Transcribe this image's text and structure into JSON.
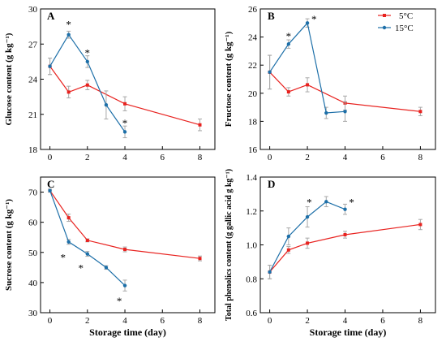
{
  "colors": {
    "s5": "#e8221f",
    "s15": "#1d6fa8",
    "err": "#a8a8a8"
  },
  "legend": {
    "s5": "5°C",
    "s15": "15°C"
  },
  "chart_data": [
    {
      "type": "line",
      "panel_label": "A",
      "ylabel": "Glucose content (g kg⁻¹)",
      "xlabel": "",
      "xlim": [
        -0.5,
        8.8
      ],
      "ylim": [
        18,
        30
      ],
      "xticks": [
        0,
        2,
        4,
        6,
        8
      ],
      "yticks": [
        18,
        21,
        24,
        27,
        30
      ],
      "series": [
        {
          "name": "5°C",
          "color_key": "s5",
          "x": [
            0,
            1,
            2,
            4,
            8
          ],
          "y": [
            25.1,
            22.9,
            23.5,
            21.9,
            20.1
          ],
          "err": [
            0.7,
            0.5,
            0.4,
            0.6,
            0.5
          ]
        },
        {
          "name": "15°C",
          "color_key": "s15",
          "x": [
            0,
            1,
            2,
            3,
            4
          ],
          "y": [
            25.1,
            27.8,
            25.5,
            21.8,
            19.5
          ],
          "err": [
            0.7,
            0.3,
            0.5,
            1.2,
            0.5
          ]
        }
      ],
      "stars": [
        {
          "x": 1,
          "y": 28.7,
          "text": "*"
        },
        {
          "x": 2,
          "y": 26.3,
          "text": "*"
        },
        {
          "x": 4,
          "y": 20.3,
          "text": "*"
        }
      ]
    },
    {
      "type": "line",
      "panel_label": "B",
      "ylabel": "Fructose content (g kg⁻¹)",
      "xlabel": "",
      "xlim": [
        -0.5,
        8.8
      ],
      "ylim": [
        16,
        26
      ],
      "xticks": [
        0,
        2,
        4,
        6,
        8
      ],
      "yticks": [
        16,
        18,
        20,
        22,
        24,
        26
      ],
      "series": [
        {
          "name": "5°C",
          "color_key": "s5",
          "x": [
            0,
            1,
            2,
            4,
            8
          ],
          "y": [
            21.5,
            20.1,
            20.6,
            19.3,
            18.7
          ],
          "err": [
            1.2,
            0.3,
            0.5,
            0.5,
            0.3
          ]
        },
        {
          "name": "15°C",
          "color_key": "s15",
          "x": [
            0,
            1,
            2,
            3,
            4
          ],
          "y": [
            21.5,
            23.5,
            25.0,
            18.6,
            18.7
          ],
          "err": [
            1.2,
            0.3,
            0.3,
            0.4,
            0.7
          ]
        }
      ],
      "stars": [
        {
          "x": 1,
          "y": 24.1,
          "text": "*"
        },
        {
          "x": 2.35,
          "y": 25.3,
          "text": "*"
        }
      ]
    },
    {
      "type": "line",
      "panel_label": "C",
      "ylabel": "Sucrose content (g kg⁻¹)",
      "xlabel": "Storage time (day)",
      "xlim": [
        -0.5,
        8.8
      ],
      "ylim": [
        30,
        75
      ],
      "xticks": [
        0,
        2,
        4,
        6,
        8
      ],
      "yticks": [
        30,
        40,
        50,
        60,
        70
      ],
      "series": [
        {
          "name": "5°C",
          "color_key": "s5",
          "x": [
            0,
            1,
            2,
            4,
            8
          ],
          "y": [
            70.5,
            61.5,
            54.0,
            51.0,
            48.0
          ],
          "err": [
            0.5,
            1.2,
            0.5,
            0.8,
            0.8
          ]
        },
        {
          "name": "15°C",
          "color_key": "s15",
          "x": [
            0,
            1,
            2,
            3,
            4
          ],
          "y": [
            70.5,
            53.5,
            49.5,
            45.0,
            39.0
          ],
          "err": [
            0.5,
            0.8,
            0.8,
            0.6,
            1.8
          ]
        }
      ],
      "stars": [
        {
          "x": 0.7,
          "y": 48.5,
          "text": "*"
        },
        {
          "x": 1.65,
          "y": 45.0,
          "text": "*"
        },
        {
          "x": 3.7,
          "y": 34.0,
          "text": "*"
        }
      ]
    },
    {
      "type": "line",
      "panel_label": "D",
      "ylabel": "Total phenolics content (g gallic acid g kg⁻¹)",
      "xlabel": "Storage time (day)",
      "xlim": [
        -0.5,
        8.8
      ],
      "ylim": [
        0.6,
        1.4
      ],
      "xticks": [
        0,
        2,
        4,
        6,
        8
      ],
      "yticks": [
        0.6,
        0.8,
        1.0,
        1.2,
        1.4
      ],
      "series": [
        {
          "name": "5°C",
          "color_key": "s5",
          "x": [
            0,
            1,
            2,
            4,
            8
          ],
          "y": [
            0.84,
            0.97,
            1.01,
            1.06,
            1.12
          ],
          "err": [
            0.04,
            0.02,
            0.03,
            0.02,
            0.03
          ]
        },
        {
          "name": "15°C",
          "color_key": "s15",
          "x": [
            0,
            1,
            2,
            3,
            4
          ],
          "y": [
            0.84,
            1.05,
            1.165,
            1.255,
            1.21
          ],
          "err": [
            0.04,
            0.05,
            0.06,
            0.03,
            0.03
          ]
        }
      ],
      "stars": [
        {
          "x": 2.1,
          "y": 1.255,
          "text": "*"
        },
        {
          "x": 4.35,
          "y": 1.255,
          "text": "*"
        }
      ]
    }
  ]
}
